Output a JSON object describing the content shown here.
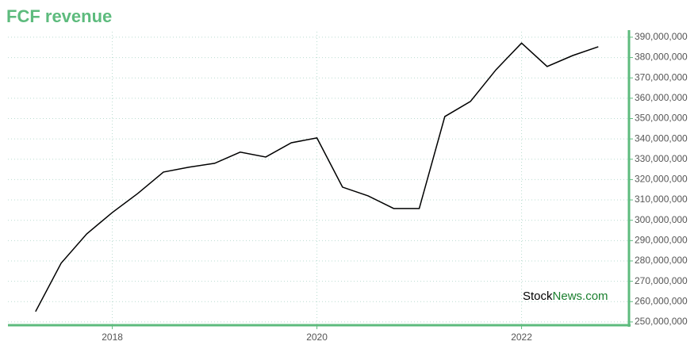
{
  "chart_data": {
    "type": "line",
    "title": "FCF revenue",
    "watermark": [
      "Stock",
      "News.com"
    ],
    "x": [
      2017.25,
      2017.5,
      2017.75,
      2018.0,
      2018.25,
      2018.5,
      2018.75,
      2019.0,
      2019.25,
      2019.5,
      2019.75,
      2020.0,
      2020.25,
      2020.5,
      2020.75,
      2021.0,
      2021.25,
      2021.5,
      2021.75,
      2022.0,
      2022.25,
      2022.5,
      2022.75
    ],
    "series": [
      {
        "name": "FCF revenue",
        "color": "#000000",
        "values": [
          255100000,
          278900000,
          293300000,
          303800000,
          313200000,
          323700000,
          326100000,
          328000000,
          333500000,
          331100000,
          338100000,
          340500000,
          316300000,
          312000000,
          305800000,
          305800000,
          351000000,
          358400000,
          374000000,
          387100000,
          375600000,
          381000000,
          385300000
        ]
      }
    ],
    "xlim": [
      2016.98,
      2023.05
    ],
    "xticks": [
      2018,
      2020,
      2022
    ],
    "ylim": [
      248400000,
      392700000
    ],
    "yticks": [
      {
        "value": 250000000,
        "label": "250,000,000"
      },
      {
        "value": 260000000,
        "label": "260,000,000"
      },
      {
        "value": 270000000,
        "label": "270,000,000"
      },
      {
        "value": 280000000,
        "label": "280,000,000"
      },
      {
        "value": 290000000,
        "label": "290,000,000"
      },
      {
        "value": 300000000,
        "label": "300,000,000"
      },
      {
        "value": 310000000,
        "label": "310,000,000"
      },
      {
        "value": 320000000,
        "label": "320,000,000"
      },
      {
        "value": 330000000,
        "label": "330,000,000"
      },
      {
        "value": 340000000,
        "label": "340,000,000"
      },
      {
        "value": 350000000,
        "label": "350,000,000"
      },
      {
        "value": 360000000,
        "label": "360,000,000"
      },
      {
        "value": 370000000,
        "label": "370,000,000"
      },
      {
        "value": 380000000,
        "label": "380,000,000"
      },
      {
        "value": 390000000,
        "label": "390,000,000"
      }
    ],
    "grid": true,
    "axis_color": "#5dbb7d"
  }
}
